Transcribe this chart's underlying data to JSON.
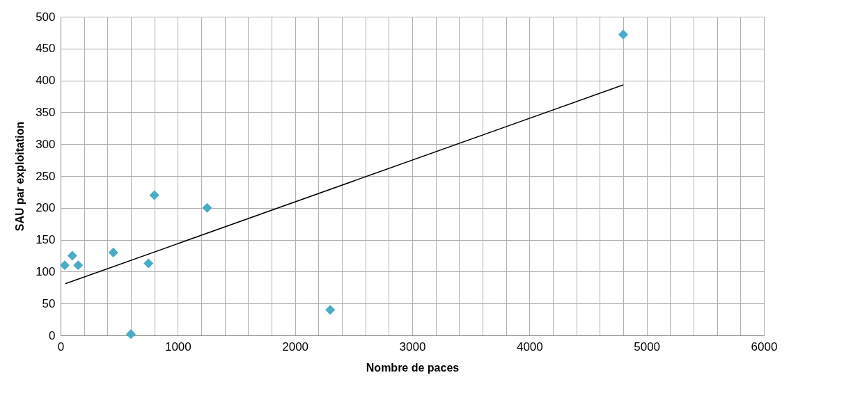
{
  "chart_data": {
    "type": "scatter",
    "xlabel": "Nombre de paces",
    "ylabel": "SAU par exploitation",
    "x": [
      35,
      100,
      150,
      450,
      600,
      750,
      800,
      1250,
      2300,
      4800
    ],
    "series": [
      {
        "color": "#4bacc6",
        "values": [
          110,
          125,
          110,
          130,
          2,
          113,
          220,
          200,
          40,
          472
        ],
        "marker": "diamond"
      },
      {
        "type": "line",
        "color": "#000000",
        "x": [
          40,
          4800
        ],
        "values": [
          81,
          393
        ],
        "line_style": "solid"
      }
    ],
    "xlim": [
      0,
      6000
    ],
    "xticks": [
      0,
      {
        "value": 200,
        "label": null
      },
      {
        "value": 400,
        "label": null
      },
      {
        "value": 600,
        "label": null
      },
      {
        "value": 800,
        "label": null
      },
      1000,
      {
        "value": 1200,
        "label": null
      },
      {
        "value": 1400,
        "label": null
      },
      {
        "value": 1600,
        "label": null
      },
      {
        "value": 1800,
        "label": null
      },
      2000,
      {
        "value": 2200,
        "label": null
      },
      {
        "value": 2400,
        "label": null
      },
      {
        "value": 2600,
        "label": null
      },
      {
        "value": 2800,
        "label": null
      },
      3000,
      {
        "value": 3200,
        "label": null
      },
      {
        "value": 3400,
        "label": null
      },
      {
        "value": 3600,
        "label": null
      },
      {
        "value": 3800,
        "label": null
      },
      4000,
      {
        "value": 4200,
        "label": null
      },
      {
        "value": 4400,
        "label": null
      },
      {
        "value": 4600,
        "label": null
      },
      {
        "value": 4800,
        "label": null
      },
      5000,
      {
        "value": 5200,
        "label": null
      },
      {
        "value": 5400,
        "label": null
      },
      {
        "value": 5600,
        "label": null
      },
      {
        "value": 5800,
        "label": null
      },
      6000
    ],
    "ylim": [
      0,
      500
    ],
    "yticks": [
      0,
      50,
      100,
      150,
      200,
      250,
      300,
      350,
      400,
      450,
      500
    ],
    "grid": true
  }
}
